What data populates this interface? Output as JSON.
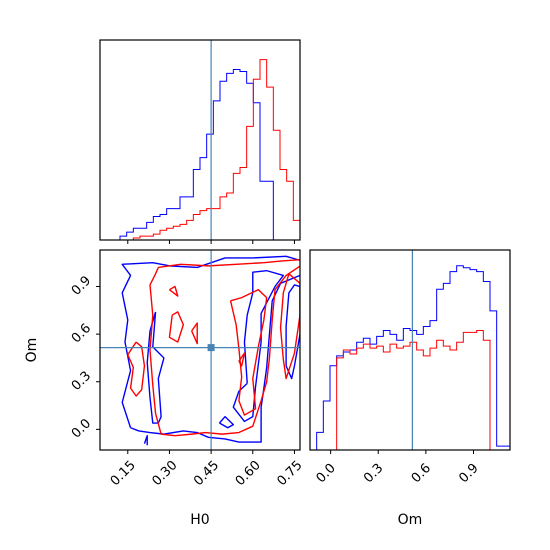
{
  "chart_data": {
    "type": "corner",
    "params": [
      "H0",
      "Om"
    ],
    "truths": {
      "H0": 0.45,
      "Om": 0.515
    },
    "truth_color": "#4682b4",
    "series": [
      {
        "color": "#0000ff"
      },
      {
        "color": "#ff0000"
      }
    ],
    "panels": [
      {
        "id": "hist-H0",
        "type": "histogram",
        "xlabel": "",
        "xlim": [
          0.05,
          0.77
        ],
        "xticks": [
          0.15,
          0.3,
          0.45,
          0.6,
          0.75
        ],
        "bin_edges": [
          0.05,
          0.074,
          0.098,
          0.122,
          0.146,
          0.17,
          0.194,
          0.218,
          0.242,
          0.266,
          0.29,
          0.314,
          0.338,
          0.362,
          0.386,
          0.41,
          0.434,
          0.458,
          0.482,
          0.506,
          0.53,
          0.554,
          0.578,
          0.602,
          0.626,
          0.65,
          0.674,
          0.698,
          0.722,
          0.746,
          0.77
        ],
        "counts": [
          [
            0,
            0,
            0,
            0.02,
            0.04,
            0.06,
            0.06,
            0.09,
            0.12,
            0.13,
            0.16,
            0.16,
            0.22,
            0.22,
            0.36,
            0.42,
            0.54,
            0.71,
            0.81,
            0.85,
            0.87,
            0.86,
            0.8,
            0.7,
            0.3,
            0.3,
            0.0,
            0.0,
            0.0,
            0.0
          ],
          [
            0,
            0,
            0,
            0,
            0,
            0.01,
            0.02,
            0.02,
            0.03,
            0.05,
            0.06,
            0.07,
            0.08,
            0.1,
            0.13,
            0.15,
            0.16,
            0.16,
            0.22,
            0.24,
            0.34,
            0.37,
            0.58,
            0.82,
            0.92,
            0.78,
            0.56,
            0.36,
            0.3,
            0.1
          ]
        ]
      },
      {
        "id": "contour-H0-Om",
        "type": "contour2d",
        "xlabel": "H0",
        "ylabel": "Om",
        "xlim": [
          0.05,
          0.77
        ],
        "ylim": [
          -0.13,
          1.13
        ],
        "xticks": [
          0.15,
          0.3,
          0.45,
          0.6,
          0.75
        ],
        "yticks": [
          0.0,
          0.3,
          0.6,
          0.9
        ],
        "contours": [
          {
            "series": 0,
            "points": [
              [
                0.16,
                0.01
              ],
              [
                0.13,
                0.17
              ],
              [
                0.16,
                0.37
              ],
              [
                0.14,
                0.55
              ],
              [
                0.15,
                0.69
              ],
              [
                0.13,
                0.86
              ],
              [
                0.16,
                0.97
              ],
              [
                0.13,
                1.04
              ],
              [
                0.24,
                1.05
              ],
              [
                0.3,
                1.03
              ],
              [
                0.4,
                1.02
              ],
              [
                0.5,
                1.08
              ],
              [
                0.6,
                1.08
              ],
              [
                0.72,
                1.09
              ],
              [
                0.78,
                1.06
              ],
              [
                0.77,
                0.97
              ],
              [
                0.7,
                0.92
              ],
              [
                0.67,
                0.81
              ],
              [
                0.66,
                0.6
              ],
              [
                0.65,
                0.39
              ],
              [
                0.64,
                0.26
              ],
              [
                0.63,
                0.14
              ],
              [
                0.63,
                -0.08
              ],
              [
                0.55,
                -0.08
              ],
              [
                0.5,
                -0.06
              ],
              [
                0.44,
                -0.05
              ],
              [
                0.4,
                -0.02
              ],
              [
                0.35,
                -0.01
              ],
              [
                0.28,
                -0.03
              ],
              [
                0.23,
                -0.02
              ],
              [
                0.19,
                -0.01
              ],
              [
                0.16,
                0.01
              ]
            ]
          },
          {
            "series": 0,
            "points": [
              [
                0.25,
                0.74
              ],
              [
                0.24,
                0.52
              ],
              [
                0.28,
                0.45
              ],
              [
                0.26,
                0.32
              ],
              [
                0.27,
                0.08
              ],
              [
                0.26,
                0.04
              ],
              [
                0.24,
                0.04
              ],
              [
                0.23,
                0.2
              ],
              [
                0.22,
                0.42
              ],
              [
                0.23,
                0.62
              ],
              [
                0.25,
                0.74
              ]
            ]
          },
          {
            "series": 0,
            "points": [
              [
                0.58,
                0.29
              ],
              [
                0.57,
                0.55
              ],
              [
                0.58,
                0.72
              ],
              [
                0.6,
                0.86
              ],
              [
                0.6,
                0.99
              ],
              [
                0.65,
                1.0
              ],
              [
                0.71,
                0.97
              ],
              [
                0.68,
                0.9
              ],
              [
                0.63,
                0.73
              ],
              [
                0.63,
                0.55
              ],
              [
                0.61,
                0.27
              ],
              [
                0.6,
                0.08
              ],
              [
                0.57,
                0.05
              ],
              [
                0.53,
                0.14
              ],
              [
                0.55,
                0.24
              ],
              [
                0.58,
                0.29
              ]
            ]
          },
          {
            "series": 0,
            "points": [
              [
                0.72,
                0.4
              ],
              [
                0.72,
                0.65
              ],
              [
                0.73,
                0.86
              ],
              [
                0.75,
                0.91
              ],
              [
                0.77,
                0.9
              ],
              [
                0.77,
                0.6
              ],
              [
                0.75,
                0.4
              ],
              [
                0.74,
                0.32
              ],
              [
                0.72,
                0.4
              ]
            ]
          },
          {
            "series": 0,
            "points": [
              [
                0.48,
                0.04
              ],
              [
                0.5,
                0.08
              ],
              [
                0.53,
                0.03
              ],
              [
                0.51,
                0.01
              ],
              [
                0.48,
                0.04
              ]
            ]
          },
          {
            "series": 0,
            "points": [
              [
                0.21,
                -0.09
              ],
              [
                0.22,
                -0.04
              ],
              [
                0.22,
                -0.1
              ]
            ]
          },
          {
            "series": 1,
            "points": [
              [
                0.26,
                1.02
              ],
              [
                0.34,
                1.04
              ],
              [
                0.44,
                1.03
              ],
              [
                0.54,
                1.04
              ],
              [
                0.64,
                1.05
              ],
              [
                0.7,
                1.06
              ],
              [
                0.78,
                1.07
              ],
              [
                0.78,
                1.04
              ],
              [
                0.72,
                0.97
              ],
              [
                0.68,
                0.88
              ],
              [
                0.67,
                0.69
              ],
              [
                0.66,
                0.45
              ],
              [
                0.65,
                0.3
              ],
              [
                0.63,
                0.18
              ],
              [
                0.6,
                0.02
              ],
              [
                0.55,
                -0.02
              ],
              [
                0.49,
                -0.03
              ],
              [
                0.43,
                -0.02
              ],
              [
                0.38,
                -0.03
              ],
              [
                0.32,
                -0.04
              ],
              [
                0.27,
                -0.03
              ],
              [
                0.25,
                0.1
              ],
              [
                0.24,
                0.28
              ],
              [
                0.23,
                0.5
              ],
              [
                0.24,
                0.72
              ],
              [
                0.23,
                0.91
              ],
              [
                0.25,
                0.98
              ],
              [
                0.26,
                1.02
              ]
            ]
          },
          {
            "series": 1,
            "points": [
              [
                0.18,
                0.55
              ],
              [
                0.15,
                0.47
              ],
              [
                0.17,
                0.39
              ],
              [
                0.16,
                0.26
              ],
              [
                0.18,
                0.21
              ],
              [
                0.2,
                0.25
              ],
              [
                0.21,
                0.4
              ],
              [
                0.2,
                0.52
              ],
              [
                0.18,
                0.55
              ]
            ]
          },
          {
            "series": 1,
            "points": [
              [
                0.31,
                0.72
              ],
              [
                0.3,
                0.58
              ],
              [
                0.33,
                0.55
              ],
              [
                0.35,
                0.66
              ],
              [
                0.33,
                0.74
              ],
              [
                0.31,
                0.72
              ]
            ]
          },
          {
            "series": 1,
            "points": [
              [
                0.52,
                0.81
              ],
              [
                0.54,
                0.66
              ],
              [
                0.55,
                0.51
              ],
              [
                0.56,
                0.33
              ],
              [
                0.55,
                0.18
              ],
              [
                0.57,
                0.09
              ],
              [
                0.61,
                0.13
              ],
              [
                0.6,
                0.32
              ],
              [
                0.62,
                0.52
              ],
              [
                0.64,
                0.69
              ],
              [
                0.65,
                0.83
              ],
              [
                0.62,
                0.88
              ],
              [
                0.56,
                0.83
              ],
              [
                0.52,
                0.81
              ]
            ]
          },
          {
            "series": 1,
            "points": [
              [
                0.73,
                0.98
              ],
              [
                0.71,
                0.86
              ],
              [
                0.7,
                0.64
              ],
              [
                0.71,
                0.44
              ],
              [
                0.72,
                0.32
              ],
              [
                0.75,
                0.48
              ],
              [
                0.77,
                0.72
              ],
              [
                0.77,
                0.92
              ],
              [
                0.73,
                0.98
              ]
            ]
          },
          {
            "series": 1,
            "points": [
              [
                0.38,
                0.62
              ],
              [
                0.4,
                0.54
              ],
              [
                0.4,
                0.67
              ],
              [
                0.38,
                0.62
              ]
            ]
          },
          {
            "series": 1,
            "points": [
              [
                0.3,
                0.88
              ],
              [
                0.33,
                0.84
              ],
              [
                0.32,
                0.9
              ],
              [
                0.3,
                0.88
              ]
            ]
          },
          {
            "series": 1,
            "points": [
              [
                0.55,
                0.43
              ],
              [
                0.57,
                0.48
              ],
              [
                0.56,
                0.4
              ],
              [
                0.55,
                0.43
              ]
            ]
          }
        ]
      },
      {
        "id": "hist-Om",
        "type": "histogram",
        "xlabel": "Om",
        "xlim": [
          -0.13,
          1.13
        ],
        "xticks": [
          0.0,
          0.3,
          0.6,
          0.9
        ],
        "bin_edges": [
          -0.13,
          -0.088,
          -0.046,
          -0.004,
          0.038,
          0.08,
          0.122,
          0.164,
          0.206,
          0.248,
          0.29,
          0.332,
          0.374,
          0.416,
          0.458,
          0.5,
          0.542,
          0.584,
          0.626,
          0.668,
          0.71,
          0.752,
          0.794,
          0.836,
          0.878,
          0.92,
          0.962,
          1.004,
          1.046,
          1.088,
          1.13
        ],
        "counts": [
          [
            0.0,
            0.09,
            0.25,
            0.43,
            0.48,
            0.5,
            0.51,
            0.55,
            0.57,
            0.54,
            0.58,
            0.61,
            0.59,
            0.56,
            0.62,
            0.61,
            0.59,
            0.63,
            0.66,
            0.82,
            0.85,
            0.91,
            0.94,
            0.93,
            0.92,
            0.91,
            0.86,
            0.71,
            0.02,
            0.02
          ],
          [
            0.0,
            0.0,
            0.0,
            0.0,
            0.47,
            0.51,
            0.49,
            0.52,
            0.54,
            0.52,
            0.53,
            0.5,
            0.54,
            0.52,
            0.53,
            0.55,
            0.51,
            0.48,
            0.52,
            0.56,
            0.53,
            0.51,
            0.55,
            0.6,
            0.6,
            0.61,
            0.56,
            0.0,
            0.0,
            0.0
          ]
        ]
      }
    ]
  }
}
